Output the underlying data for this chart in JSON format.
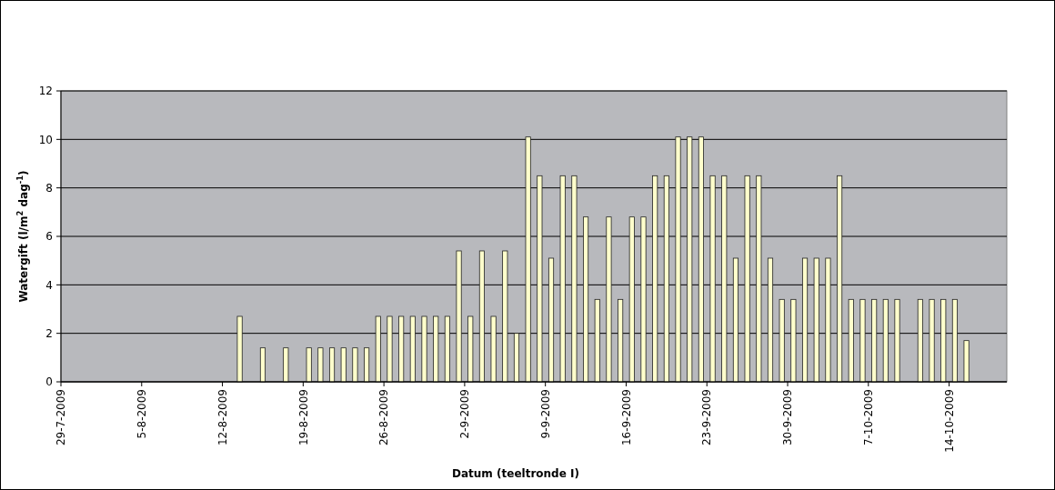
{
  "chart_data": {
    "type": "bar",
    "xlabel": "Datum (teeltronde I)",
    "ylabel": "Watergift (l/m$^{2}$ dag$^{-1}$)",
    "x": [
      "2009-08-13T12:00",
      "2009-08-15T12:00",
      "2009-08-17T12:00",
      "2009-08-19T12:00",
      "2009-08-20T12:00",
      "2009-08-21T12:00",
      "2009-08-22T12:00",
      "2009-08-23T12:00",
      "2009-08-24T12:00",
      "2009-08-25T12:00",
      "2009-08-26T12:00",
      "2009-08-27T12:00",
      "2009-08-28T12:00",
      "2009-08-29T12:00",
      "2009-08-30T12:00",
      "2009-08-31T12:00",
      "2009-09-01T12:00",
      "2009-09-02T12:00",
      "2009-09-03T12:00",
      "2009-09-04T12:00",
      "2009-09-05T12:00",
      "2009-09-06T12:00",
      "2009-09-07T12:00",
      "2009-09-08T12:00",
      "2009-09-09T12:00",
      "2009-09-10T12:00",
      "2009-09-11T12:00",
      "2009-09-12T12:00",
      "2009-09-13T12:00",
      "2009-09-14T12:00",
      "2009-09-15T12:00",
      "2009-09-16T12:00",
      "2009-09-17T12:00",
      "2009-09-18T12:00",
      "2009-09-19T12:00",
      "2009-09-20T12:00",
      "2009-09-21T12:00",
      "2009-09-22T12:00",
      "2009-09-23T12:00",
      "2009-09-24T12:00",
      "2009-09-25T12:00",
      "2009-09-26T12:00",
      "2009-09-27T12:00",
      "2009-09-28T12:00",
      "2009-09-29T12:00",
      "2009-09-30T12:00",
      "2009-10-01T12:00",
      "2009-10-02T12:00",
      "2009-10-03T12:00",
      "2009-10-04T12:00",
      "2009-10-05T12:00",
      "2009-10-06T12:00",
      "2009-10-07T12:00",
      "2009-10-08T12:00",
      "2009-10-09T12:00",
      "2009-10-11T12:00",
      "2009-10-12T12:00",
      "2009-10-13T12:00",
      "2009-10-14T12:00",
      "2009-10-15T12:00"
    ],
    "values": [
      2.7,
      1.4,
      1.4,
      1.4,
      1.4,
      1.4,
      1.4,
      1.4,
      1.4,
      2.7,
      2.7,
      2.7,
      2.7,
      2.7,
      2.7,
      2.7,
      5.4,
      2.7,
      5.4,
      2.7,
      5.4,
      2.0,
      10.1,
      8.5,
      5.1,
      8.5,
      8.5,
      6.8,
      3.4,
      6.8,
      3.4,
      6.8,
      6.8,
      8.5,
      8.5,
      10.1,
      10.1,
      10.1,
      8.5,
      8.5,
      5.1,
      8.5,
      8.5,
      5.1,
      3.4,
      3.4,
      5.1,
      5.1,
      5.1,
      8.5,
      3.4,
      3.4,
      3.4,
      3.4,
      3.4,
      3.4,
      3.4,
      3.4,
      3.4,
      1.7
    ],
    "color": "#ffffcc",
    "xlim": [
      "2009-07-29",
      "2009-10-19"
    ],
    "xticks": [
      {
        "value": "2009-07-29",
        "label": "29-7-2009"
      },
      {
        "value": "2009-08-05",
        "label": "5-8-2009"
      },
      {
        "value": "2009-08-12",
        "label": "12-8-2009"
      },
      {
        "value": "2009-08-19",
        "label": "19-8-2009"
      },
      {
        "value": "2009-08-26",
        "label": "26-8-2009"
      },
      {
        "value": "2009-09-02",
        "label": "2-9-2009"
      },
      {
        "value": "2009-09-09",
        "label": "9-9-2009"
      },
      {
        "value": "2009-09-16",
        "label": "16-9-2009"
      },
      {
        "value": "2009-09-23",
        "label": "23-9-2009"
      },
      {
        "value": "2009-09-30",
        "label": "30-9-2009"
      },
      {
        "value": "2009-10-07",
        "label": "7-10-2009"
      },
      {
        "value": "2009-10-14",
        "label": "14-10-2009"
      }
    ],
    "ylim": [
      0,
      12
    ],
    "yticks": [
      0,
      2,
      4,
      6,
      8,
      10,
      12
    ],
    "grid": "y"
  }
}
